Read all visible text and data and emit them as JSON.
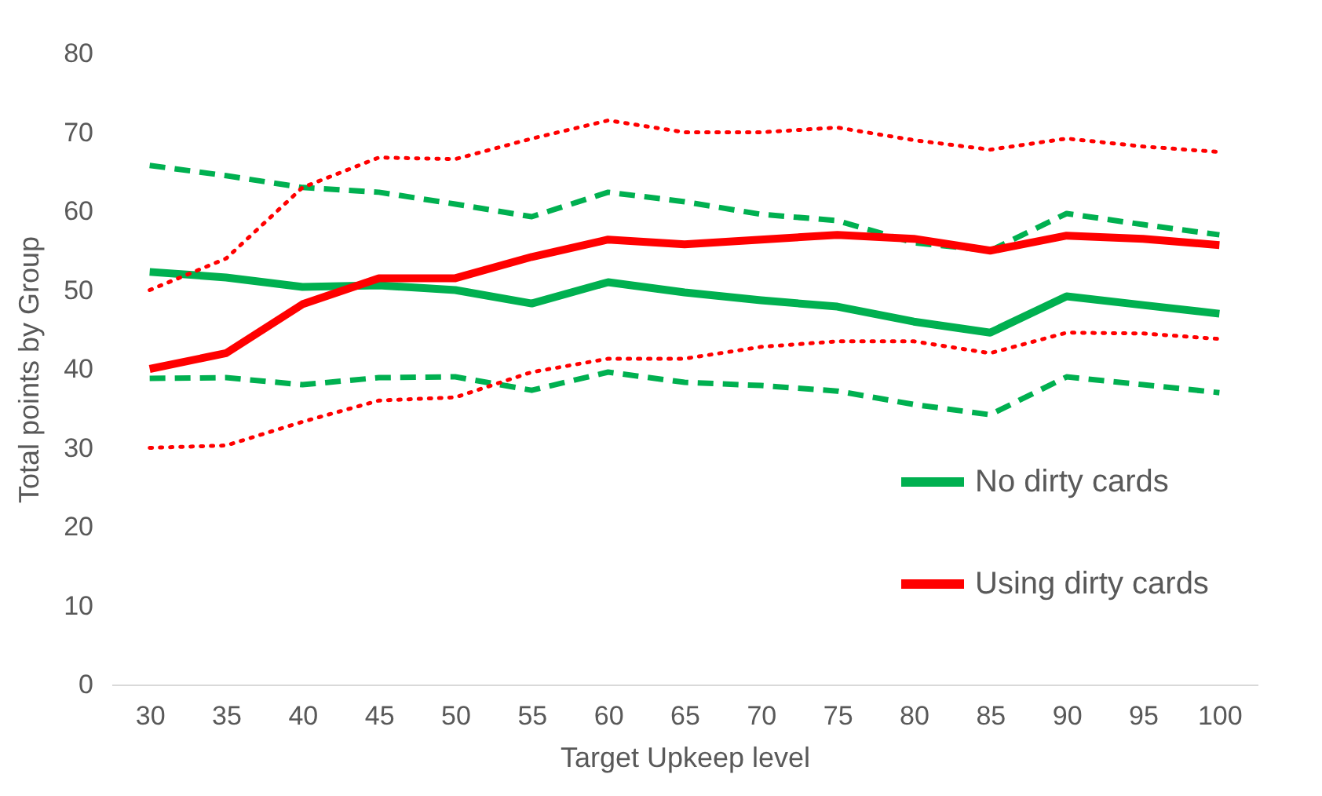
{
  "chart_data": {
    "type": "line",
    "xlabel": "Target  Upkeep level",
    "ylabel": "Total points by Group",
    "categories": [
      "30",
      "35",
      "40",
      "45",
      "50",
      "55",
      "60",
      "65",
      "70",
      "75",
      "80",
      "85",
      "90",
      "95",
      "100"
    ],
    "ylim": [
      0,
      80
    ],
    "yticks": [
      0,
      10,
      20,
      30,
      40,
      50,
      60,
      70,
      80
    ],
    "grid": false,
    "legend": "bottom right",
    "marker": "none",
    "series": [
      {
        "name": "No dirty cards",
        "color": "#00b050",
        "line_style": "solid",
        "values": [
          52.3,
          51.6,
          50.4,
          50.6,
          50.0,
          48.3,
          51.0,
          49.7,
          48.7,
          47.9,
          46.0,
          44.6,
          49.2,
          48.1,
          47.0
        ]
      },
      {
        "color": "#00b050",
        "line_style": "dashed",
        "values": [
          65.8,
          64.5,
          63.0,
          62.4,
          60.9,
          59.3,
          62.4,
          61.2,
          59.6,
          58.8,
          56.0,
          55.0,
          59.7,
          58.3,
          57.0
        ]
      },
      {
        "color": "#00b050",
        "line_style": "dashed",
        "values": [
          38.8,
          38.9,
          38.0,
          38.9,
          39.0,
          37.3,
          39.6,
          38.3,
          37.9,
          37.2,
          35.5,
          34.2,
          39.0,
          38.0,
          37.0
        ]
      },
      {
        "name": "Using dirty cards",
        "color": "#ff0000",
        "line_style": "solid",
        "values": [
          40.0,
          42.0,
          48.2,
          51.5,
          51.5,
          54.2,
          56.4,
          55.8,
          56.4,
          57.0,
          56.5,
          55.0,
          56.9,
          56.5,
          55.7
        ]
      },
      {
        "color": "#ff0000",
        "line_style": "dotted",
        "values": [
          50.0,
          54.0,
          63.0,
          66.8,
          66.6,
          69.2,
          71.5,
          70.0,
          70.0,
          70.6,
          69.0,
          67.8,
          69.2,
          68.2,
          67.5
        ]
      },
      {
        "color": "#ff0000",
        "line_style": "dotted",
        "values": [
          30.0,
          30.3,
          33.3,
          36.0,
          36.4,
          39.6,
          41.3,
          41.3,
          42.8,
          43.5,
          43.5,
          42.0,
          44.6,
          44.5,
          43.8
        ]
      }
    ]
  }
}
